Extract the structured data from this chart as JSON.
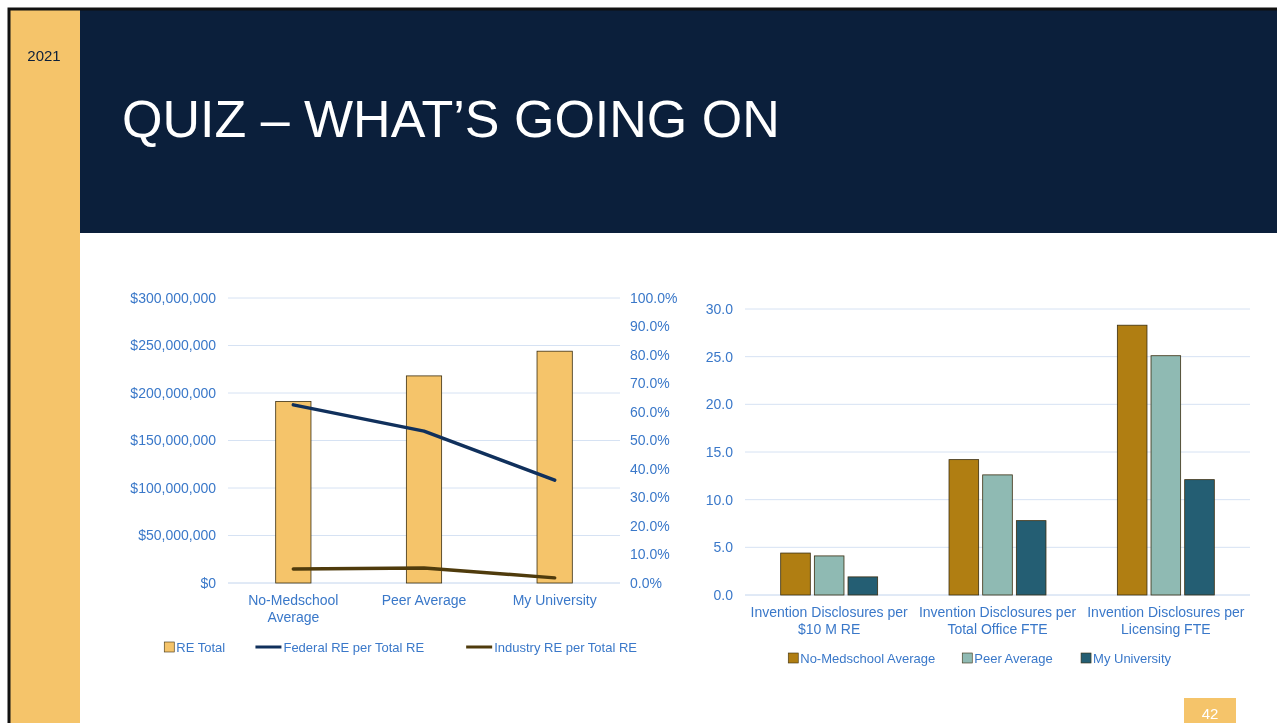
{
  "chart_data": [
    {
      "type": "bar",
      "title": "QUIZ – WHAT’S GOING ON",
      "annotations": [
        "2021",
        "42"
      ],
      "categories": [
        "No-Medschool Average",
        "Peer Average",
        "My University"
      ],
      "series": [
        {
          "name": "RE Total",
          "color": "#f5c46a",
          "values": [
            191000000,
            218000000,
            244000000
          ]
        },
        {
          "name": "Federal RE per Total RE",
          "type": "line",
          "axis": "y2",
          "color": "#10305c",
          "values": [
            62.5,
            53.3,
            36.1
          ]
        },
        {
          "name": "Industry RE per Total RE",
          "type": "line",
          "axis": "y2",
          "color": "#4f3b0c",
          "values": [
            4.9,
            5.3,
            1.8
          ]
        }
      ],
      "ylim": [
        0,
        300000000
      ],
      "yticks": [
        {
          "value": 0,
          "label": "$0"
        },
        {
          "value": 50000000,
          "label": "$50,000,000"
        },
        {
          "value": 100000000,
          "label": "$100,000,000"
        },
        {
          "value": 150000000,
          "label": "$150,000,000"
        },
        {
          "value": 200000000,
          "label": "$200,000,000"
        },
        {
          "value": 250000000,
          "label": "$250,000,000"
        },
        {
          "value": 300000000,
          "label": "$300,000,000"
        }
      ],
      "y2lim": [
        0,
        100
      ],
      "y2ticks": [
        {
          "value": 0,
          "label": "0.0%"
        },
        {
          "value": 10,
          "label": "10.0%"
        },
        {
          "value": 20,
          "label": "20.0%"
        },
        {
          "value": 30,
          "label": "30.0%"
        },
        {
          "value": 40,
          "label": "40.0%"
        },
        {
          "value": 50,
          "label": "50.0%"
        },
        {
          "value": 60,
          "label": "60.0%"
        },
        {
          "value": 70,
          "label": "70.0%"
        },
        {
          "value": 80,
          "label": "80.0%"
        },
        {
          "value": 90,
          "label": "90.0%"
        },
        {
          "value": 100,
          "label": "100.0%"
        }
      ],
      "grid": "y",
      "legend": "bottom",
      "marker": "none",
      "line_style": "solid"
    },
    {
      "type": "bar",
      "categories": [
        "Invention Disclosures per $10 M RE",
        "Invention Disclosures per Total Office FTE",
        "Invention Disclosures per Licensing FTE"
      ],
      "series": [
        {
          "name": "No-Medschool Average",
          "color": "#b07e12",
          "values": [
            4.4,
            14.2,
            28.3
          ]
        },
        {
          "name": "Peer Average",
          "color": "#8fbab3",
          "values": [
            4.1,
            12.6,
            25.1
          ]
        },
        {
          "name": "My University",
          "color": "#245e73",
          "values": [
            1.9,
            7.8,
            12.1
          ]
        }
      ],
      "ylim": [
        0,
        30
      ],
      "yticks": [
        {
          "value": 0,
          "label": "0.0"
        },
        {
          "value": 5,
          "label": "5.0"
        },
        {
          "value": 10,
          "label": "10.0"
        },
        {
          "value": 15,
          "label": "15.0"
        },
        {
          "value": 20,
          "label": "20.0"
        },
        {
          "value": 25,
          "label": "25.0"
        },
        {
          "value": 30,
          "label": "30.0"
        }
      ],
      "grid": "y",
      "legend": "bottom"
    }
  ]
}
